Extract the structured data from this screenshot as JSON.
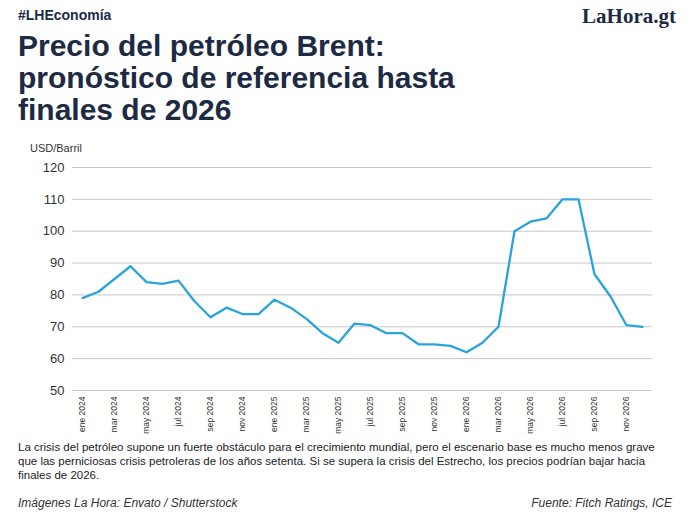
{
  "chart_data": {
    "type": "line",
    "tag": "#LHEconomía",
    "logo": "LaHora.gt",
    "title": "Precio del petróleo Brent: pronóstico de referencia hasta finales de 2026",
    "y_label": "USD/Barril",
    "caption": "La crisis del petróleo supone un fuerte obstáculo para el crecimiento mundial, pero el escenario base es mucho menos grave que las perniciosas crisis petroleras de los años setenta. Si se supera la crisis del Estrecho, los precios podrían bajar hacia finales de 2026.",
    "credit": "Imágenes La Hora: Envato / Shutterstock",
    "source": "Fuente: Fitch Ratings, ICE",
    "categories": [
      "ene 2024",
      null,
      "mar 2024",
      null,
      "may 2024",
      null,
      "jul 2024",
      null,
      "sep 2024",
      null,
      "nov 2024",
      null,
      "ene 2025",
      null,
      "mar 2025",
      null,
      "may 2025",
      null,
      "jul 2025",
      null,
      "sep 2025",
      null,
      "nov 2025",
      null,
      "ene 2026",
      null,
      "mar 2026",
      null,
      "may 2026",
      null,
      "jul 2026",
      null,
      "sep 2026",
      null,
      "nov 2026",
      null
    ],
    "values": [
      79,
      81,
      85,
      89,
      84,
      83.5,
      84.5,
      78,
      73,
      76,
      74,
      74,
      78.5,
      76,
      72.5,
      68,
      65,
      71,
      70.5,
      68,
      68,
      64.5,
      64.5,
      64,
      62,
      65,
      70,
      100,
      103,
      104,
      110,
      110,
      86.5,
      79.5,
      70.5,
      70
    ],
    "color": "#29a3dc",
    "ylim": [
      50,
      120
    ],
    "yticks": [
      50,
      60,
      70,
      80,
      90,
      100,
      110,
      120
    ],
    "grid": true
  }
}
